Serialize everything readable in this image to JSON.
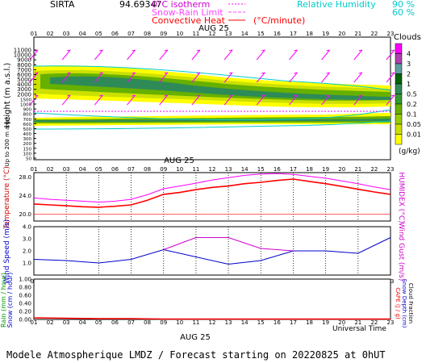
{
  "header": {
    "station": "SIRTA",
    "code": "94.69347",
    "iso_label": "0°C isotherm",
    "snow_rain_label": "Snow-Rain Limit",
    "conv_label": "Convective Heat",
    "conv_unit": "(°C/minute)",
    "rh_label": "Relative Humidity",
    "rh_90": "90 %",
    "rh_60": "60 %",
    "iso_color": "#ff00ff",
    "conv_color": "#ff0000",
    "rh_color": "#00cccc"
  },
  "hours": [
    "01",
    "02",
    "03",
    "04",
    "05",
    "06",
    "07",
    "08",
    "09",
    "10",
    "11",
    "12",
    "13",
    "14",
    "15",
    "16",
    "17",
    "18",
    "19",
    "20",
    "21",
    "22",
    "23"
  ],
  "date_label": "AUG 25",
  "footer": {
    "universal_time": "Universal Time",
    "title": "Modele Atmospherique LMDZ / Forecast starting on 20220825 at 0hUT"
  },
  "chart_data": [
    {
      "type": "heatmap",
      "name": "clouds",
      "ylabel": "Height (m a.s.l.)",
      "ylabel2": "Up to 200 m a.g.l.",
      "yticks": [
        "11000",
        "10000",
        "9000",
        "8000",
        "7000",
        "6000",
        "5000",
        "4000",
        "3000",
        "2000",
        "1500",
        "1000",
        "900",
        "800",
        "700",
        "600",
        "500",
        "400",
        "300",
        "200",
        "150",
        "100",
        "50"
      ],
      "legend": {
        "title": "Clouds",
        "unit": "(g/kg)",
        "labels": [
          "0.01",
          "0.05",
          "0.1",
          "0.2",
          "0.5",
          "1",
          "2",
          "3",
          "4"
        ],
        "colors": [
          "#ffff00",
          "#cce000",
          "#99cc00",
          "#66b000",
          "#339933",
          "#2e8b57",
          "#006400",
          "#5f9ea0",
          "#b040b0",
          "#ff00ff"
        ]
      },
      "freezing_level_m": 3800
    },
    {
      "type": "line",
      "name": "temperature",
      "ylabel": "Temperature (°C)",
      "ylabel2": "HUMIDEX (°C)",
      "yticks": [
        "28.0",
        "24.0",
        "20.0"
      ],
      "ylim": [
        18.5,
        29.0
      ],
      "x": [
        1,
        2,
        3,
        4,
        5,
        6,
        7,
        8,
        9,
        10,
        11,
        12,
        13,
        14,
        15,
        16,
        17,
        18,
        19,
        20,
        21,
        22,
        23
      ],
      "series": [
        {
          "color": "#ff0000",
          "values": [
            22.2,
            22.0,
            21.8,
            21.6,
            21.5,
            21.7,
            22.0,
            23.0,
            24.3,
            24.7,
            25.3,
            25.8,
            26.1,
            26.6,
            26.9,
            27.3,
            27.6,
            27.1,
            26.6,
            26.0,
            25.4,
            24.8,
            24.3
          ]
        },
        {
          "color": "#ff00ff",
          "values": [
            23.5,
            23.2,
            23.0,
            22.8,
            22.6,
            22.8,
            23.2,
            24.2,
            25.5,
            26.1,
            26.7,
            27.4,
            27.9,
            28.4,
            28.7,
            28.8,
            28.6,
            28.2,
            27.8,
            27.2,
            26.6,
            25.9,
            25.3
          ]
        }
      ]
    },
    {
      "type": "line",
      "name": "wind",
      "ylabel": "Wind Speed (m/s)",
      "ylabel2": "Wind Gust (m/s)",
      "yticks": [
        "4.0",
        "3.0",
        "2.0",
        "1.0"
      ],
      "ylim": [
        0,
        4
      ],
      "x": [
        1,
        3,
        5,
        7,
        9,
        11,
        13,
        15,
        17,
        19,
        21,
        23
      ],
      "series": [
        {
          "color": "#0000cc",
          "values": [
            1.3,
            1.2,
            1.0,
            1.3,
            2.1,
            1.5,
            0.9,
            1.2,
            2.0,
            2.0,
            1.8,
            3.1
          ]
        },
        {
          "color": "#cc00cc",
          "values": [
            null,
            null,
            null,
            null,
            2.1,
            3.1,
            3.1,
            2.2,
            2.0,
            null,
            null,
            null
          ]
        }
      ]
    },
    {
      "type": "line",
      "name": "precipitation",
      "ylabel": "Rain (mm / hour)",
      "ylabel2": "Snow (cm / hour)",
      "ylabel3": "CAPE (J / g)",
      "ylabel4": "Snow Depth (cm)",
      "ylabel5": "Cloud Fraction",
      "yticks": [
        "1.00",
        "0.80",
        "0.60",
        "0.40",
        "0.20",
        "0.00"
      ],
      "ylim": [
        0,
        1
      ],
      "x": [
        1,
        3,
        5,
        7,
        9,
        11,
        13,
        15,
        17,
        19,
        21,
        23
      ],
      "series": [
        {
          "color": "#ff0000",
          "values": [
            0.04,
            0.03,
            0.02,
            0.02,
            0.01,
            0.01,
            0.01,
            0.01,
            0.01,
            0.01,
            0.01,
            0.01
          ]
        }
      ]
    }
  ]
}
